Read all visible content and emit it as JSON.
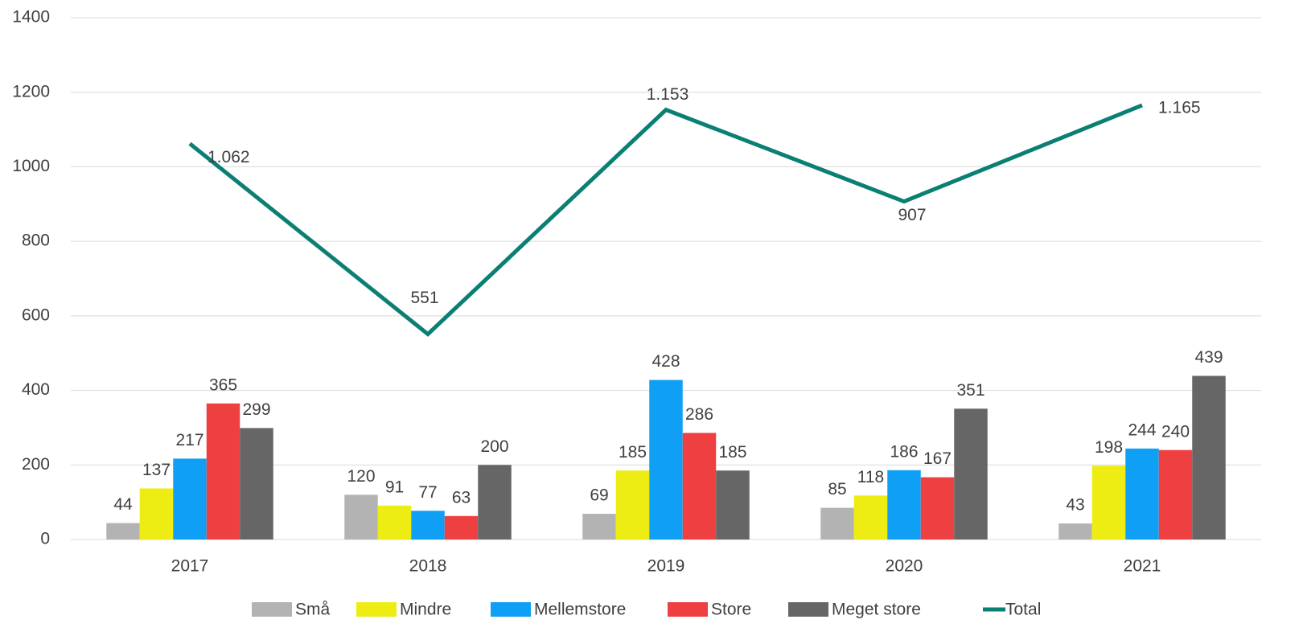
{
  "chart_data": {
    "type": "bar",
    "categories": [
      "2017",
      "2018",
      "2019",
      "2020",
      "2021"
    ],
    "series": [
      {
        "name": "Små",
        "color": "#b3b3b3",
        "values": [
          44,
          120,
          69,
          85,
          43
        ]
      },
      {
        "name": "Mindre",
        "color": "#eded14",
        "values": [
          137,
          91,
          185,
          118,
          198
        ]
      },
      {
        "name": "Mellemstore",
        "color": "#0fa0f5",
        "values": [
          217,
          77,
          428,
          186,
          244
        ]
      },
      {
        "name": "Store",
        "color": "#ee4040",
        "values": [
          365,
          63,
          286,
          167,
          240
        ]
      },
      {
        "name": "Meget store",
        "color": "#666666",
        "values": [
          299,
          200,
          185,
          351,
          439
        ]
      },
      {
        "name": "Total",
        "type": "line",
        "color": "#0a7f73",
        "values": [
          1062,
          551,
          1153,
          907,
          1165
        ],
        "value_labels": [
          "1.062",
          "551",
          "1.153",
          "907",
          "1.165"
        ]
      }
    ],
    "ylim": [
      0,
      1400
    ],
    "yticks": [
      0,
      200,
      400,
      600,
      800,
      1000,
      1200,
      1400
    ],
    "grid": true,
    "legend": "bottom"
  }
}
